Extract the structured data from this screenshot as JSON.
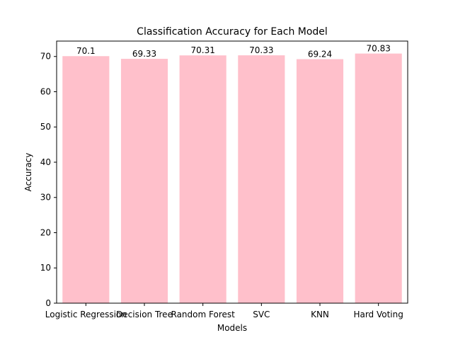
{
  "chart_data": {
    "type": "bar",
    "title": "Classification Accuracy for Each Model",
    "xlabel": "Models",
    "ylabel": "Accuracy",
    "categories": [
      "Logistic Regression",
      "Decision Tree",
      "Random Forest",
      "SVC",
      "KNN",
      "Hard Voting"
    ],
    "values": [
      70.1,
      69.33,
      70.31,
      70.33,
      69.24,
      70.83
    ],
    "value_labels": [
      "70.1",
      "69.33",
      "70.31",
      "70.33",
      "69.24",
      "70.83"
    ],
    "ylim": [
      0,
      74.37
    ],
    "yticks": [
      0,
      10,
      20,
      30,
      40,
      50,
      60,
      70
    ],
    "grid": false,
    "bar_color": "#ffc0cb"
  }
}
